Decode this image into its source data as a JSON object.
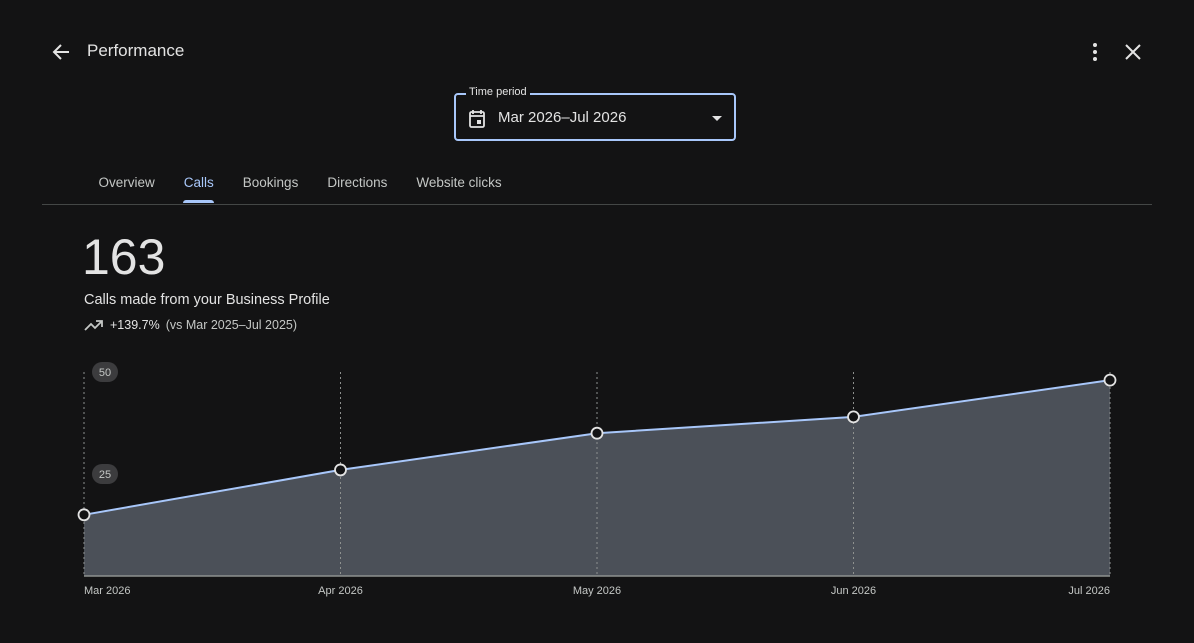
{
  "header": {
    "title": "Performance"
  },
  "time_period": {
    "label": "Time period",
    "value": "Mar 2026–Jul 2026"
  },
  "tabs": [
    "Overview",
    "Calls",
    "Bookings",
    "Directions",
    "Website clicks"
  ],
  "selected_tab": 1,
  "metric": {
    "value": 163,
    "description": "Calls made from your Business Profile",
    "change": "+139.7%",
    "comparison": "(vs Mar 2025–Jul 2025)"
  },
  "chart_data": {
    "type": "area",
    "categories": [
      "Mar 2026",
      "Apr 2026",
      "May 2026",
      "Jun 2026",
      "Jul 2026"
    ],
    "values": [
      15,
      26,
      35,
      39,
      48
    ],
    "color": "#a8c7fa",
    "fill_color": "#4b5058",
    "ylim": [
      0,
      50
    ],
    "yticks": [
      25,
      50
    ],
    "grid": true
  }
}
